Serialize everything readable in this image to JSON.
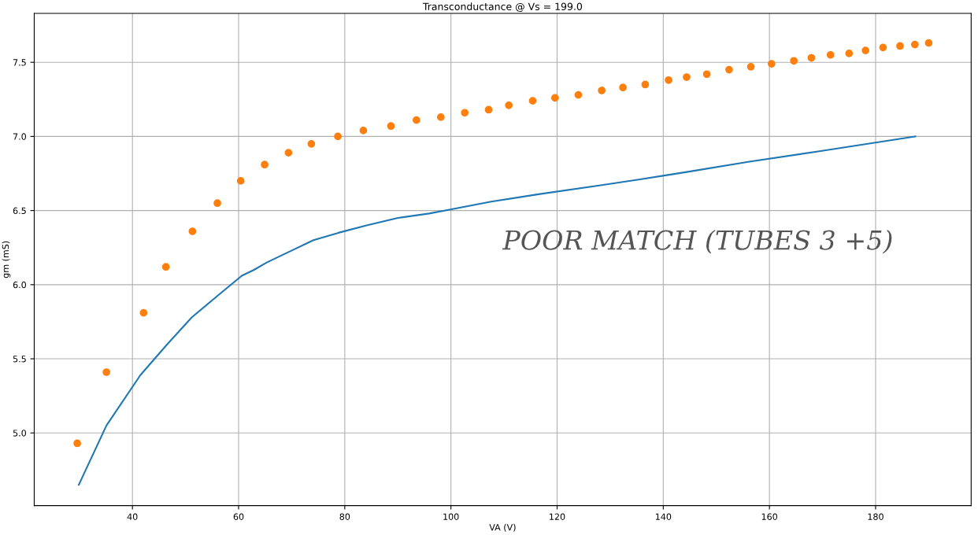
{
  "chart_data": {
    "type": "line",
    "title": "Transconductance @ Vs = 199.0",
    "xlabel": "VA (V)",
    "ylabel": "gm (mS)",
    "xlim": [
      21.5,
      198
    ],
    "ylim": [
      4.51,
      7.83
    ],
    "xticks": [
      40,
      60,
      80,
      100,
      120,
      140,
      160,
      180
    ],
    "yticks": [
      {
        "value": 5,
        "label": "5.0"
      },
      {
        "value": 5.5,
        "label": "5.5"
      },
      {
        "value": 6,
        "label": "6.0"
      },
      {
        "value": 6.5,
        "label": "6.5"
      },
      {
        "value": 7,
        "label": "7.0"
      },
      {
        "value": 7.5,
        "label": "7.5"
      }
    ],
    "grid": true,
    "annotations": [
      "POOR MATCH (TUBES 3 +5)"
    ],
    "series": [
      {
        "color": "#1f77b4",
        "x": [
          29.9,
          35.1,
          41.5,
          46.6,
          51.2,
          56.2,
          60.6,
          62.9,
          65.3,
          69.4,
          74.1,
          78.8,
          84.1,
          90.0,
          95.9,
          100.3,
          107.6,
          116.5,
          128.2,
          135.6,
          140.9,
          144.4,
          156.2,
          169.4,
          187.5
        ],
        "values": [
          4.65,
          5.05,
          5.39,
          5.6,
          5.78,
          5.93,
          6.06,
          6.1,
          6.15,
          6.22,
          6.3,
          6.35,
          6.4,
          6.45,
          6.48,
          6.51,
          6.56,
          6.61,
          6.67,
          6.71,
          6.74,
          6.76,
          6.83,
          6.9,
          7.0
        ]
      },
      {
        "type": "scatter",
        "color": "#ff7f0e",
        "x": [
          29.6,
          35.1,
          42.1,
          46.3,
          51.3,
          56.0,
          60.4,
          64.9,
          69.4,
          73.7,
          78.7,
          83.5,
          88.7,
          93.5,
          98.1,
          102.6,
          107.1,
          110.9,
          115.4,
          119.6,
          124.0,
          128.4,
          132.4,
          136.6,
          141.0,
          144.4,
          148.2,
          152.4,
          156.5,
          160.4,
          164.6,
          167.9,
          171.5,
          175.0,
          178.1,
          181.4,
          184.6,
          187.4,
          190.0
        ],
        "values": [
          4.93,
          5.41,
          5.81,
          6.12,
          6.36,
          6.55,
          6.7,
          6.81,
          6.89,
          6.95,
          7.0,
          7.04,
          7.07,
          7.11,
          7.13,
          7.16,
          7.18,
          7.21,
          7.24,
          7.26,
          7.28,
          7.31,
          7.33,
          7.35,
          7.38,
          7.4,
          7.42,
          7.45,
          7.47,
          7.49,
          7.51,
          7.53,
          7.55,
          7.56,
          7.58,
          7.6,
          7.61,
          7.62,
          7.63
        ]
      }
    ]
  }
}
